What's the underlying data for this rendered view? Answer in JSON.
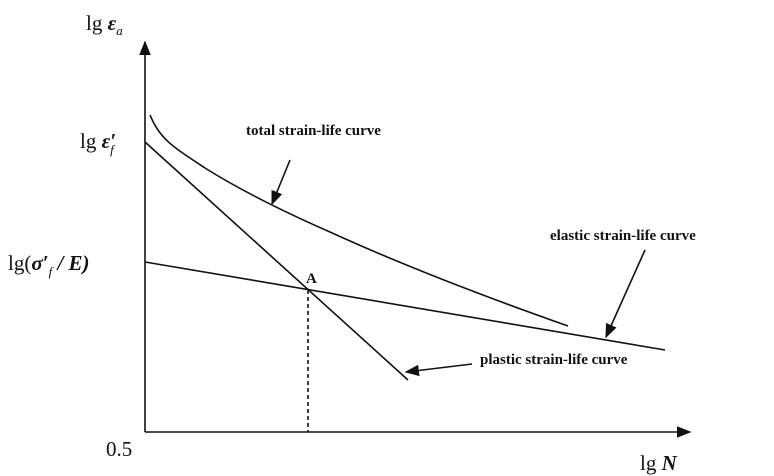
{
  "y_axis_label": {
    "prefix": "lg ",
    "symbol": "ε",
    "sub": "a"
  },
  "y_mark_upper": {
    "prefix": "lg ",
    "symbol": "ε′",
    "sub": "f"
  },
  "y_mark_lower": {
    "prefix": "lg(",
    "symbol": "σ′",
    "sub": "f",
    "suffix": " / E)"
  },
  "origin_label": "0.5",
  "x_axis_label": {
    "prefix": "lg ",
    "symbol": "N"
  },
  "curves": {
    "total": "total strain-life curve",
    "elastic": "elastic strain-life curve",
    "plastic": "plastic strain-life curve"
  },
  "point_label": "A"
}
